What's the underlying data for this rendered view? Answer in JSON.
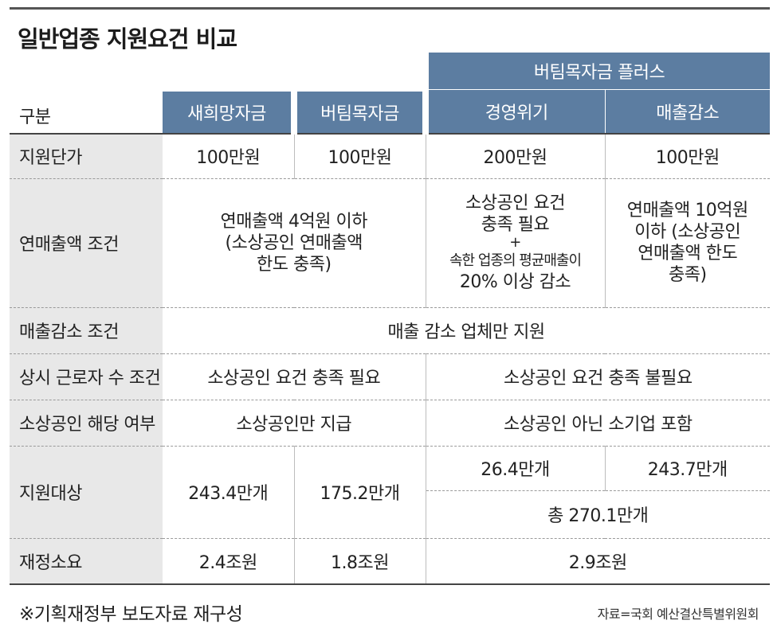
{
  "title": "일반업종 지원요건 비교",
  "header": {
    "label": "구분",
    "col1": "새희망자금",
    "col2": "버팀목자금",
    "plus_group": "버팀목자금 플러스",
    "col3": "경영위기",
    "col4": "매출감소"
  },
  "rows": {
    "unit_price": {
      "label": "지원단가",
      "c1": "100만원",
      "c2": "100만원",
      "c3": "200만원",
      "c4": "100만원"
    },
    "sales": {
      "label": "연매출액 조건",
      "c12_l1": "연매출액 4억원 이하",
      "c12_l2": "(소상공인 연매출액",
      "c12_l3": "한도 충족)",
      "c3_l1": "소상공인 요건",
      "c3_l2": "충족 필요",
      "c3_plus": "+",
      "c3_l3": "속한 업종의 평균매출이",
      "c3_l4": "20% 이상 감소",
      "c4_l1": "연매출액 10억원",
      "c4_l2": "이하 (소상공인",
      "c4_l3": "연매출액 한도",
      "c4_l4": "충족)"
    },
    "decline": {
      "label": "매출감소 조건",
      "all": "매출 감소 업체만 지원"
    },
    "workers": {
      "label": "상시 근로자 수 조건",
      "c12": "소상공인 요건 충족 필요",
      "c34": "소상공인 요건 충족 불필요"
    },
    "eligibility": {
      "label": "소상공인 해당 여부",
      "c12": "소상공인만 지급",
      "c34": "소상공인 아닌 소기업 포함"
    },
    "targets": {
      "label": "지원대상",
      "c1": "243.4만개",
      "c2": "175.2만개",
      "c3": "26.4만개",
      "c4": "243.7만개",
      "total": "총 270.1만개"
    },
    "budget": {
      "label": "재정소요",
      "c1": "2.4조원",
      "c2": "1.8조원",
      "c34": "2.9조원"
    }
  },
  "footnote": "※기획재정부 보도자료 재구성",
  "source": "자료=국회 예산결산특별위원회"
}
